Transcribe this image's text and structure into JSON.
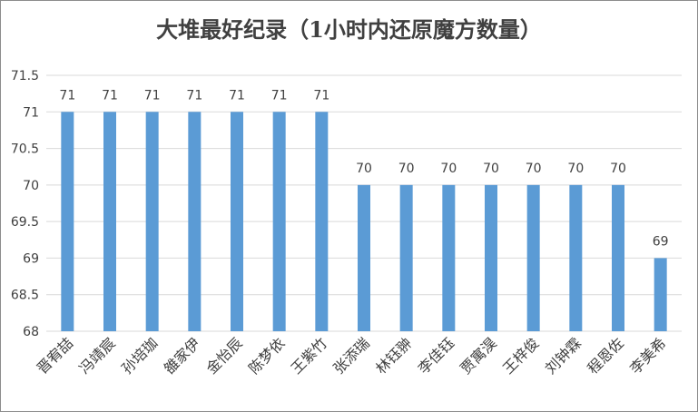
{
  "chart_data": {
    "type": "bar",
    "title": "大堆最好纪录（1小时内还原魔方数量）",
    "categories": [
      "晋宥喆",
      "冯靖宸",
      "孙培珈",
      "雒家伊",
      "金怡辰",
      "陈梦依",
      "王紫竹",
      "张添瑞",
      "林钰翀",
      "李佳钰",
      "贾寓淏",
      "王梓俊",
      "刘钟霖",
      "程恩佐",
      "李美希"
    ],
    "values": [
      71,
      71,
      71,
      71,
      71,
      71,
      71,
      70,
      70,
      70,
      70,
      70,
      70,
      70,
      69
    ],
    "ylim": [
      68,
      71.5
    ],
    "yticks": [
      "68",
      "68.5",
      "69",
      "69.5",
      "70",
      "70.5",
      "71",
      "71.5"
    ],
    "xlabel": "",
    "ylabel": "",
    "grid": true,
    "bar_color": "#5b9bd5",
    "grid_color": "#d9d9d9",
    "text_color": "#404040",
    "data_labels": true
  }
}
